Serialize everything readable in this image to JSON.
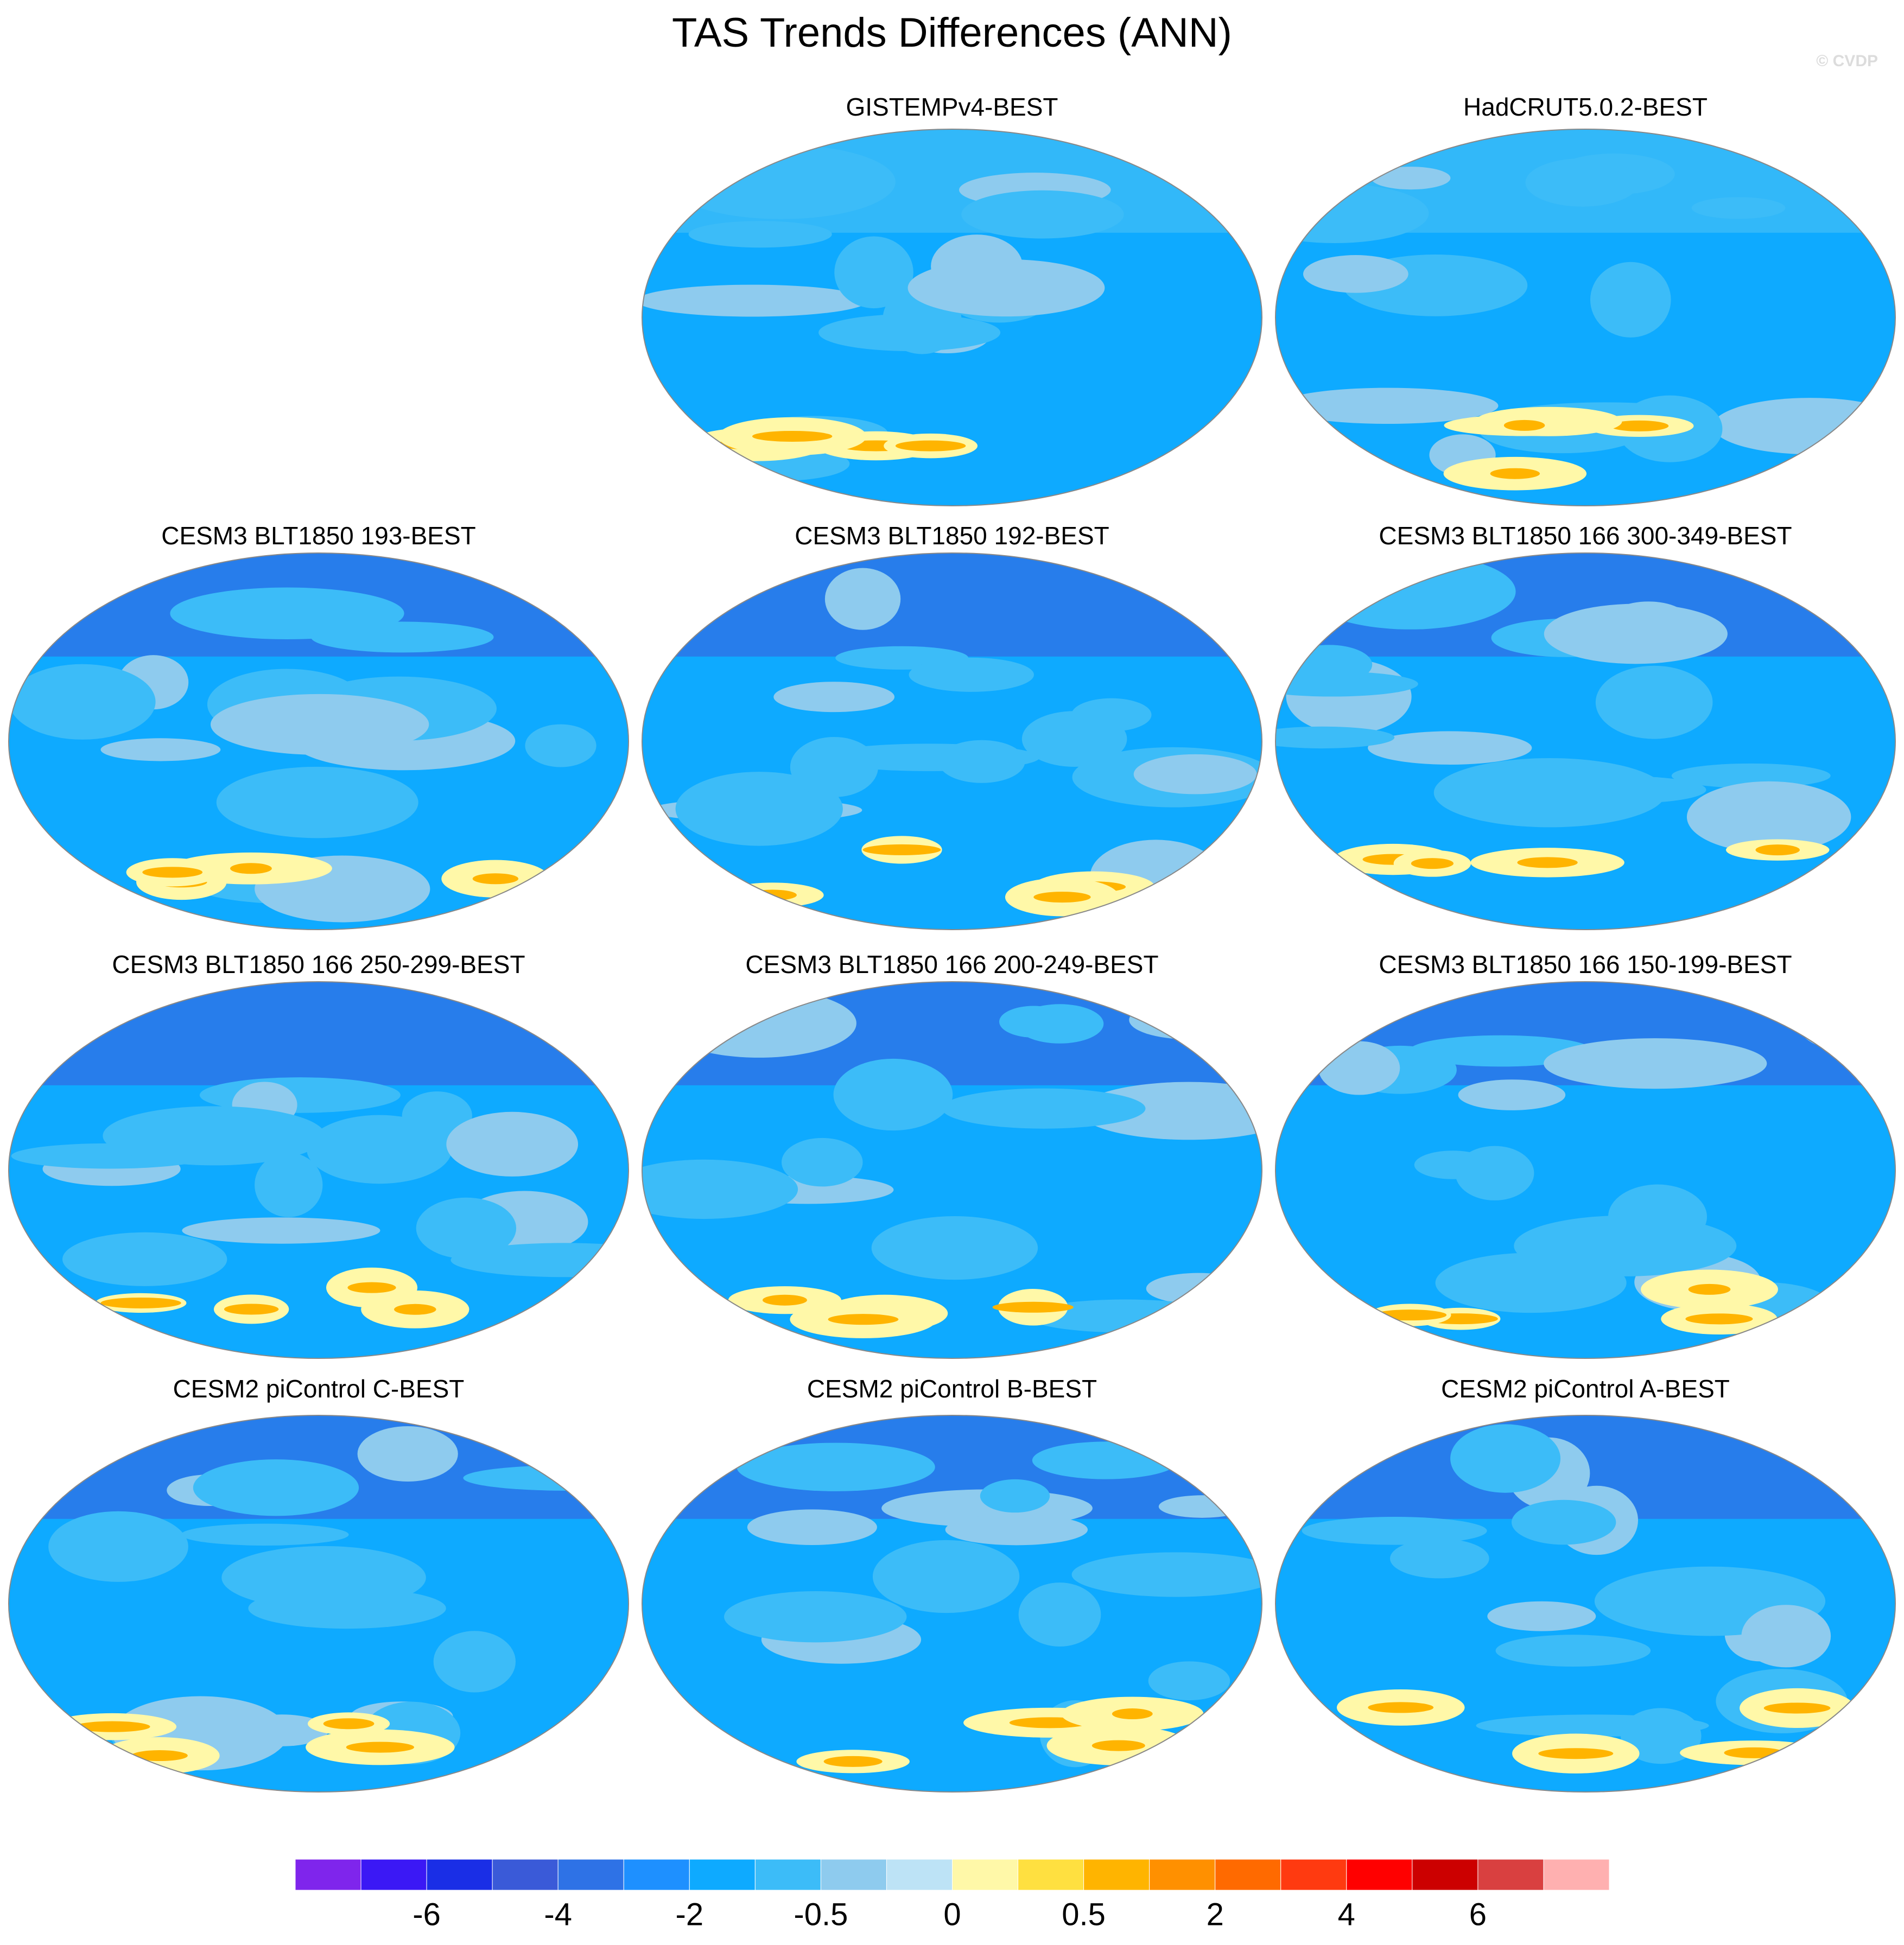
{
  "title": "TAS Trends Differences (ANN)",
  "watermark": "© CVDP",
  "panels": [
    {
      "title": "GISTEMPv4-BEST"
    },
    {
      "title": "HadCRUT5.0.2-BEST"
    },
    {
      "title": "CESM3 BLT1850 193-BEST"
    },
    {
      "title": "CESM3 BLT1850 192-BEST"
    },
    {
      "title": "CESM3 BLT1850 166 300-349-BEST"
    },
    {
      "title": "CESM3 BLT1850 166 250-299-BEST"
    },
    {
      "title": "CESM3 BLT1850 166 200-249-BEST"
    },
    {
      "title": "CESM3 BLT1850 166 150-199-BEST"
    },
    {
      "title": "CESM2 piControl C-BEST"
    },
    {
      "title": "CESM2 piControl B-BEST"
    },
    {
      "title": "CESM2 piControl A-BEST"
    }
  ],
  "colorbar": {
    "colors": [
      "#7f25ec",
      "#3b18f5",
      "#1a2ee6",
      "#3a5ad8",
      "#2e72e6",
      "#1e90ff",
      "#0eaaff",
      "#3cbcf8",
      "#8ecbee",
      "#bde3f6",
      "#fff8a8",
      "#ffe040",
      "#ffb400",
      "#ff9000",
      "#ff6a00",
      "#ff3a10",
      "#ff0000",
      "#cc0000",
      "#d94040",
      "#ffb0b0"
    ],
    "labels": [
      -6,
      -4,
      -2,
      -0.5,
      0,
      0.5,
      2,
      4,
      6
    ]
  }
}
